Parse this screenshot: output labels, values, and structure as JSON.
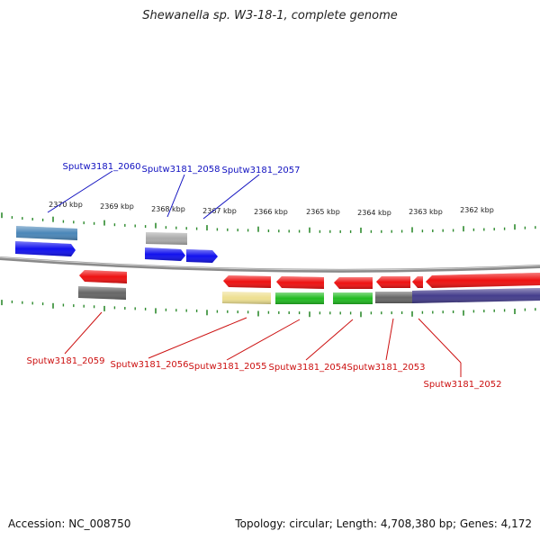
{
  "title": "Shewanella sp. W3-18-1, complete genome",
  "footer": {
    "accession": "Accession: NC_008750",
    "summary": "Topology: circular; Length: 4,708,380 bp; Genes: 4,172"
  },
  "colors": {
    "backbone": "#909090",
    "tick": "#2e8b2e",
    "label_top": "#1010c0",
    "label_bottom": "#cc1010",
    "red": "#ee1111",
    "blue": "#1111ee",
    "steel": "#4a86b8",
    "gray_light": "#aaaaaa",
    "gray_dark": "#666666",
    "yellow": "#eee090",
    "green": "#22bb22",
    "navy": "#443d8c"
  },
  "scale": {
    "unit": "kbp",
    "ticks": [
      {
        "kbp": 2370,
        "label": "2370 kbp"
      },
      {
        "kbp": 2369,
        "label": "2369 kbp"
      },
      {
        "kbp": 2368,
        "label": "2368 kbp"
      },
      {
        "kbp": 2367,
        "label": "2367 kbp"
      },
      {
        "kbp": 2366,
        "label": "2366 kbp"
      },
      {
        "kbp": 2365,
        "label": "2365 kbp"
      },
      {
        "kbp": 2364,
        "label": "2364 kbp"
      },
      {
        "kbp": 2363,
        "label": "2363 kbp"
      },
      {
        "kbp": 2362,
        "label": "2362 kbp"
      }
    ]
  },
  "labels": {
    "top": [
      "Sputw3181_2060",
      "Sputw3181_2058",
      "Sputw3181_2057"
    ],
    "bottom": [
      "Sputw3181_2059",
      "Sputw3181_2056",
      "Sputw3181_2055",
      "Sputw3181_2054",
      "Sputw3181_2053",
      "Sputw3181_2052"
    ]
  }
}
